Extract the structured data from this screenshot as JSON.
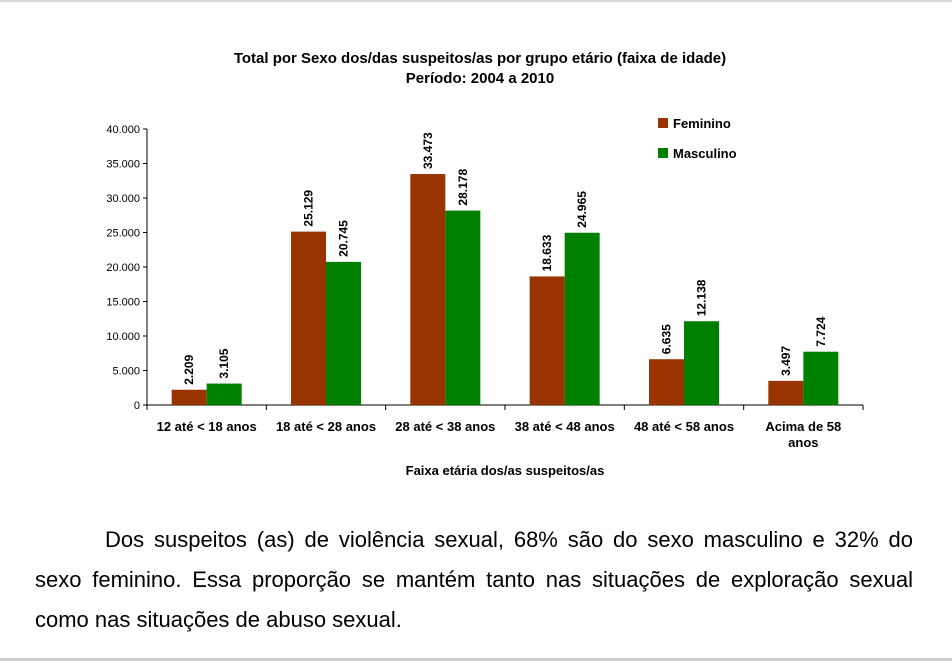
{
  "chart_data": {
    "type": "bar",
    "title": "Total por Sexo dos/das suspeitos/as por grupo etário (faixa de idade)",
    "subtitle": "Período: 2004 a 2010",
    "xlabel": "Faixa etária dos/as suspeitos/as",
    "ylabel": "",
    "categories": [
      [
        "12 até < 18 anos"
      ],
      [
        "18 até < 28 anos"
      ],
      [
        "28 até < 38 anos"
      ],
      [
        "38 até < 48 anos"
      ],
      [
        "48 até < 58 anos"
      ],
      [
        "Acima de 58",
        "anos"
      ]
    ],
    "series": [
      {
        "name": "Feminino",
        "color": "#993300",
        "values": [
          2209,
          25129,
          33473,
          18633,
          6635,
          3497
        ],
        "labels": [
          "2.209",
          "25.129",
          "33.473",
          "18.633",
          "6.635",
          "3.497"
        ]
      },
      {
        "name": "Masculino",
        "color": "#008000",
        "values": [
          3105,
          20745,
          28178,
          24965,
          12138,
          7724
        ],
        "labels": [
          "3.105",
          "20.745",
          "28.178",
          "24.965",
          "12.138",
          "7.724"
        ]
      }
    ],
    "ylim": [
      0,
      40000
    ],
    "yticks": [
      0,
      5000,
      10000,
      15000,
      20000,
      25000,
      30000,
      35000,
      40000
    ],
    "ytick_labels": [
      "0",
      "5.000",
      "10.000",
      "15.000",
      "20.000",
      "25.000",
      "30.000",
      "35.000",
      "40.000"
    ],
    "grid": false,
    "legend": "top-right"
  },
  "paragraph": "Dos suspeitos (as) de violência sexual, 68% são do sexo masculino e 32% do sexo feminino. Essa proporção se mantém tanto nas situações de exploração sexual como nas situações de abuso sexual."
}
